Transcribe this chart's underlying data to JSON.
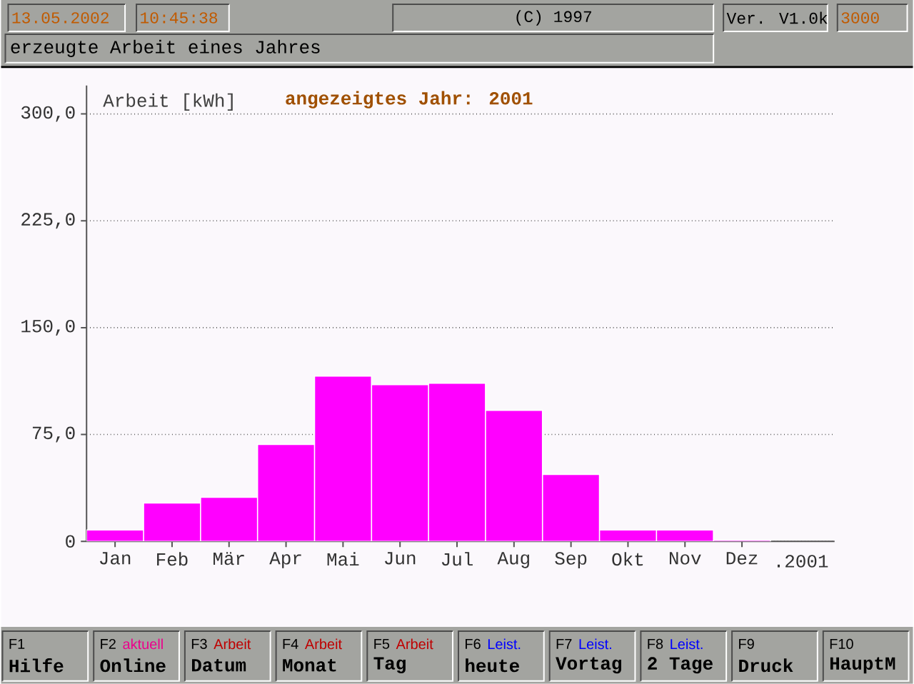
{
  "chart_data": {
    "type": "bar",
    "title": "erzeugte Arbeit eines Jahres",
    "ylabel": "Arbeit [kWh]",
    "xlabel": ".2001",
    "categories": [
      "Jan",
      "Feb",
      "Mär",
      "Apr",
      "Mai",
      "Jun",
      "Jul",
      "Aug",
      "Sep",
      "Okt",
      "Nov",
      "Dez"
    ],
    "values": [
      8,
      27,
      31,
      68,
      116,
      110,
      111,
      92,
      47,
      8,
      8,
      1
    ],
    "color": "#ff00ff",
    "ylim": [
      0,
      320
    ],
    "yticks": [
      0,
      {
        "value": 75,
        "label": "75,0"
      },
      {
        "value": 150,
        "label": "150,0"
      },
      {
        "value": 225,
        "label": "225,0"
      },
      {
        "value": 300,
        "label": "300,0"
      }
    ],
    "grid": "y",
    "annotations": [
      "13.05.2002",
      "10:45:38",
      "(C) 1997",
      "Ver. V1.0k",
      "3000",
      "angezeigtes Jahr: 2001",
      "F1",
      "Hilfe",
      "F2",
      "aktuell",
      "Online",
      "F3",
      "Arbeit",
      "Datum",
      "F4",
      "Arbeit",
      "Monat",
      "F5",
      "Arbeit",
      "Tag",
      "F6",
      "Leist.",
      "heute",
      "F7",
      "Leist.",
      "Vortag",
      "F8",
      "Leist.",
      "2 Tage",
      "F9",
      "Druck",
      "F10",
      "HauptM"
    ]
  }
}
